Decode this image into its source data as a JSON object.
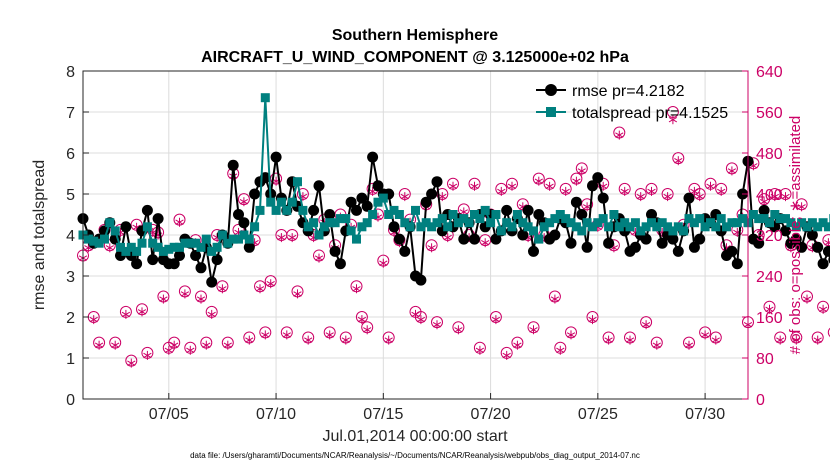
{
  "chart_data": {
    "type": "line",
    "title": "Southern Hemisphere",
    "subtitle": "AIRCRAFT_U_WIND_COMPONENT @ 3.125000e+02 hPa",
    "xlabel": "Jul.01,2014 00:00:00 start",
    "ylabel_left": "rmse and totalspread",
    "ylabel_right": "# of obs: o=possible; ∗=assimilated",
    "footnote": "data file: /Users/gharamti/Documents/NCAR/Reanalysis/~/Documents/NCAR/Reanalysis/webpub/obs_diag_output_2014-07.nc",
    "x_range_days": [
      1,
      32
    ],
    "ylim_left": [
      0,
      8
    ],
    "ylim_right": [
      0,
      640
    ],
    "left_ticks": [
      "0",
      "1",
      "2",
      "3",
      "4",
      "5",
      "6",
      "7",
      "8"
    ],
    "right_ticks": [
      "0",
      "80",
      "160",
      "240",
      "320",
      "400",
      "480",
      "560",
      "640"
    ],
    "x_ticks": [
      {
        "label": "07/05",
        "day": 5
      },
      {
        "label": "07/10",
        "day": 10
      },
      {
        "label": "07/15",
        "day": 15
      },
      {
        "label": "07/20",
        "day": 20
      },
      {
        "label": "07/25",
        "day": 25
      },
      {
        "label": "07/30",
        "day": 30
      }
    ],
    "grid": true,
    "legend": {
      "location": "top-right"
    },
    "colors": {
      "rmse": "#000000",
      "totalspread": "#00807f",
      "obs": "#cc0066"
    },
    "series": [
      {
        "name": "rmse",
        "legend_label": "rmse pr=4.2182",
        "start_day": 1,
        "step_hours": 6,
        "values": [
          4.4,
          4.0,
          3.8,
          3.9,
          4.1,
          4.3,
          3.9,
          3.5,
          4.2,
          3.5,
          3.3,
          4.1,
          4.6,
          3.4,
          4.4,
          3.4,
          3.3,
          3.3,
          3.5,
          3.9,
          3.8,
          3.5,
          3.2,
          3.7,
          2.85,
          3.4,
          4.0,
          3.8,
          5.7,
          4.5,
          4.3,
          3.7,
          5.0,
          5.3,
          5.4,
          5.0,
          5.9,
          4.9,
          4.6,
          5.3,
          4.7,
          4.3,
          4.1,
          4.6,
          5.2,
          4.1,
          4.5,
          3.6,
          3.3,
          4.1,
          4.8,
          4.6,
          4.9,
          4.7,
          5.9,
          5.2,
          5.0,
          5.0,
          4.2,
          3.9,
          3.6,
          4.2,
          3.0,
          2.9,
          4.8,
          5.0,
          5.3,
          4.1,
          4.5,
          4.2,
          4.4,
          3.9,
          4.3,
          3.9,
          4.5,
          4.2,
          4.5,
          3.9,
          4.1,
          4.6,
          4.1,
          4.4,
          4.0,
          4.6,
          3.6,
          4.5,
          4.3,
          3.9,
          4.0,
          4.4,
          4.3,
          3.8,
          4.8,
          4.5,
          3.7,
          5.2,
          5.4,
          4.9,
          3.8,
          4.2,
          4.4,
          4.1,
          3.6,
          3.7,
          4.0,
          3.9,
          4.5,
          4.3,
          3.8,
          4.0,
          3.9,
          3.6,
          4.1,
          4.9,
          3.7,
          3.9,
          4.4,
          4.3,
          4.5,
          4.1,
          3.5,
          3.6,
          3.3,
          5.0,
          5.8,
          3.9,
          3.8,
          4.6,
          4.3,
          4.2,
          4.4,
          4.1,
          3.8,
          3.9,
          3.7,
          4.2,
          4.0,
          3.7,
          3.3,
          3.6,
          3.4,
          3.9,
          3.1,
          4.4,
          4.2,
          3.7
        ]
      },
      {
        "name": "totalspread",
        "legend_label": "totalspread pr=4.1525",
        "start_day": 1,
        "step_hours": 6,
        "values": [
          4.0,
          3.9,
          3.85,
          3.8,
          3.9,
          4.3,
          4.1,
          3.7,
          3.6,
          3.7,
          3.6,
          3.8,
          4.2,
          3.8,
          3.7,
          3.6,
          3.65,
          3.7,
          3.7,
          3.8,
          3.8,
          3.8,
          3.7,
          3.9,
          3.6,
          3.7,
          4.0,
          3.8,
          3.9,
          3.9,
          4.0,
          3.9,
          4.2,
          4.6,
          7.35,
          4.8,
          4.6,
          4.8,
          4.6,
          4.8,
          5.3,
          4.6,
          4.2,
          4.3,
          4.0,
          4.2,
          4.3,
          4.3,
          4.4,
          4.4,
          4.1,
          3.9,
          4.2,
          4.3,
          4.5,
          4.8,
          4.9,
          4.5,
          4.6,
          4.5,
          4.3,
          4.2,
          4.6,
          4.2,
          4.3,
          4.2,
          4.3,
          4.4,
          4.2,
          4.5,
          4.3,
          4.4,
          4.3,
          4.5,
          4.4,
          4.6,
          4.3,
          4.5,
          4.1,
          4.3,
          4.2,
          4.5,
          4.3,
          4.2,
          4.1,
          3.9,
          4.2,
          4.3,
          4.4,
          4.5,
          4.4,
          4.3,
          4.2,
          4.1,
          4.3,
          4.2,
          4.3,
          4.4,
          4.2,
          4.5,
          4.2,
          4.3,
          4.2,
          4.3,
          4.1,
          4.2,
          4.3,
          4.2,
          4.3,
          4.2,
          4.1,
          4.2,
          4.1,
          4.4,
          4.3,
          4.4,
          4.2,
          4.3,
          4.2,
          4.4,
          4.2,
          4.3,
          4.3,
          4.4,
          4.3,
          4.5,
          4.4,
          4.4,
          4.3,
          4.5,
          4.4,
          4.4,
          4.3,
          4.2,
          4.3,
          4.2,
          4.3,
          4.2,
          4.3,
          4.2,
          4.4,
          4.2,
          4.1,
          4.3,
          4.2,
          4.1
        ]
      },
      {
        "name": "obs_possible",
        "legend_label": "o=possible",
        "start_day": 1,
        "step_hours": 6,
        "values": [
          280,
          300,
          160,
          110,
          330,
          300,
          110,
          330,
          170,
          75,
          340,
          175,
          90,
          330,
          325,
          200,
          100,
          110,
          350,
          210,
          100,
          310,
          200,
          110,
          170,
          320,
          220,
          110,
          440,
          330,
          390,
          120,
          310,
          220,
          130,
          230,
          430,
          320,
          130,
          320,
          210,
          400,
          120,
          320,
          280,
          350,
          130,
          300,
          360,
          120,
          340,
          220,
          160,
          140,
          410,
          360,
          270,
          120,
          330,
          310,
          400,
          350,
          170,
          160,
          380,
          300,
          150,
          400,
          320,
          420,
          140,
          370,
          320,
          420,
          100,
          310,
          360,
          160,
          410,
          90,
          420,
          110,
          380,
          320,
          140,
          430,
          320,
          420,
          200,
          100,
          410,
          130,
          430,
          450,
          380,
          160,
          340,
          420,
          120,
          300,
          520,
          410,
          120,
          330,
          400,
          150,
          410,
          110,
          330,
          400,
          560,
          470,
          340,
          110,
          410,
          400,
          130,
          420,
          120,
          410,
          300,
          450,
          330,
          360,
          150,
          460,
          320,
          390,
          180,
          400,
          120,
          400,
          300,
          120,
          380,
          200,
          300,
          120,
          180,
          310,
          130,
          310,
          170,
          120,
          300
        ]
      },
      {
        "name": "obs_assimilated",
        "legend_label": "∗=assimilated",
        "start_day": 1,
        "step_hours": 6,
        "values": [
          275,
          295,
          155,
          105,
          325,
          295,
          105,
          325,
          165,
          70,
          335,
          170,
          85,
          325,
          320,
          195,
          95,
          105,
          345,
          205,
          95,
          305,
          195,
          105,
          165,
          315,
          215,
          105,
          435,
          325,
          385,
          115,
          305,
          215,
          125,
          225,
          425,
          315,
          125,
          315,
          205,
          395,
          115,
          315,
          275,
          345,
          125,
          295,
          355,
          115,
          335,
          215,
          155,
          135,
          405,
          355,
          265,
          115,
          325,
          305,
          395,
          345,
          165,
          155,
          375,
          295,
          145,
          395,
          315,
          415,
          135,
          365,
          315,
          415,
          95,
          305,
          355,
          155,
          405,
          85,
          415,
          105,
          375,
          315,
          135,
          425,
          315,
          415,
          195,
          95,
          405,
          125,
          425,
          445,
          375,
          155,
          335,
          415,
          115,
          295,
          515,
          405,
          115,
          325,
          395,
          145,
          405,
          105,
          325,
          395,
          545,
          465,
          335,
          105,
          405,
          395,
          125,
          415,
          115,
          405,
          295,
          445,
          325,
          355,
          145,
          455,
          315,
          385,
          175,
          395,
          115,
          395,
          295,
          115,
          375,
          195,
          295,
          115,
          175,
          305,
          125,
          305,
          165,
          115,
          295
        ]
      }
    ]
  }
}
